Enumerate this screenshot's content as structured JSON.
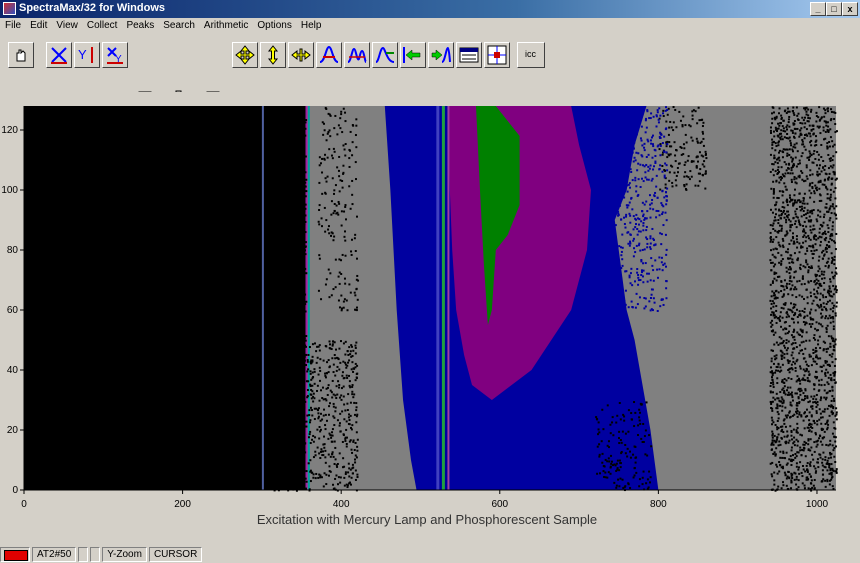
{
  "window": {
    "title": "SpectraMax/32 for Windows",
    "buttons": [
      "_",
      "□",
      "x"
    ]
  },
  "menu": [
    "File",
    "Edit",
    "View",
    "Collect",
    "Peaks",
    "Search",
    "Arithmetic",
    "Options",
    "Help"
  ],
  "toolbar": {
    "icc_label": "icc",
    "tools": [
      "hand-icon",
      "x-zoom-icon",
      "y-zoom-icon",
      "xy-zoom-icon",
      "slider",
      "pan-all-icon",
      "pan-vertical-icon",
      "pan-horizontal-icon",
      "peak-icon",
      "peak-pair-icon",
      "peak-left-icon",
      "arrow-left-icon",
      "arrow-right-peak-icon",
      "table-icon",
      "grid-icon"
    ]
  },
  "chart_data": {
    "type": "heatmap",
    "title": "",
    "xlabel": "Excitation with Mercury Lamp and Phosphorescent Sample",
    "ylabel": "",
    "xlim": [
      0,
      1024
    ],
    "ylim": [
      0,
      128
    ],
    "x_ticks": [
      0,
      200,
      400,
      600,
      800,
      1000
    ],
    "y_ticks": [
      0,
      20,
      40,
      60,
      80,
      100,
      120
    ],
    "colors": [
      "#000000",
      "#808080",
      "#0000a0",
      "#800080",
      "#008000"
    ]
  },
  "status": {
    "color_swatch": "#e00000",
    "sample": "AT2#50",
    "field1": "",
    "field2": "",
    "mode": "Y-Zoom",
    "cursor": "CURSOR"
  }
}
